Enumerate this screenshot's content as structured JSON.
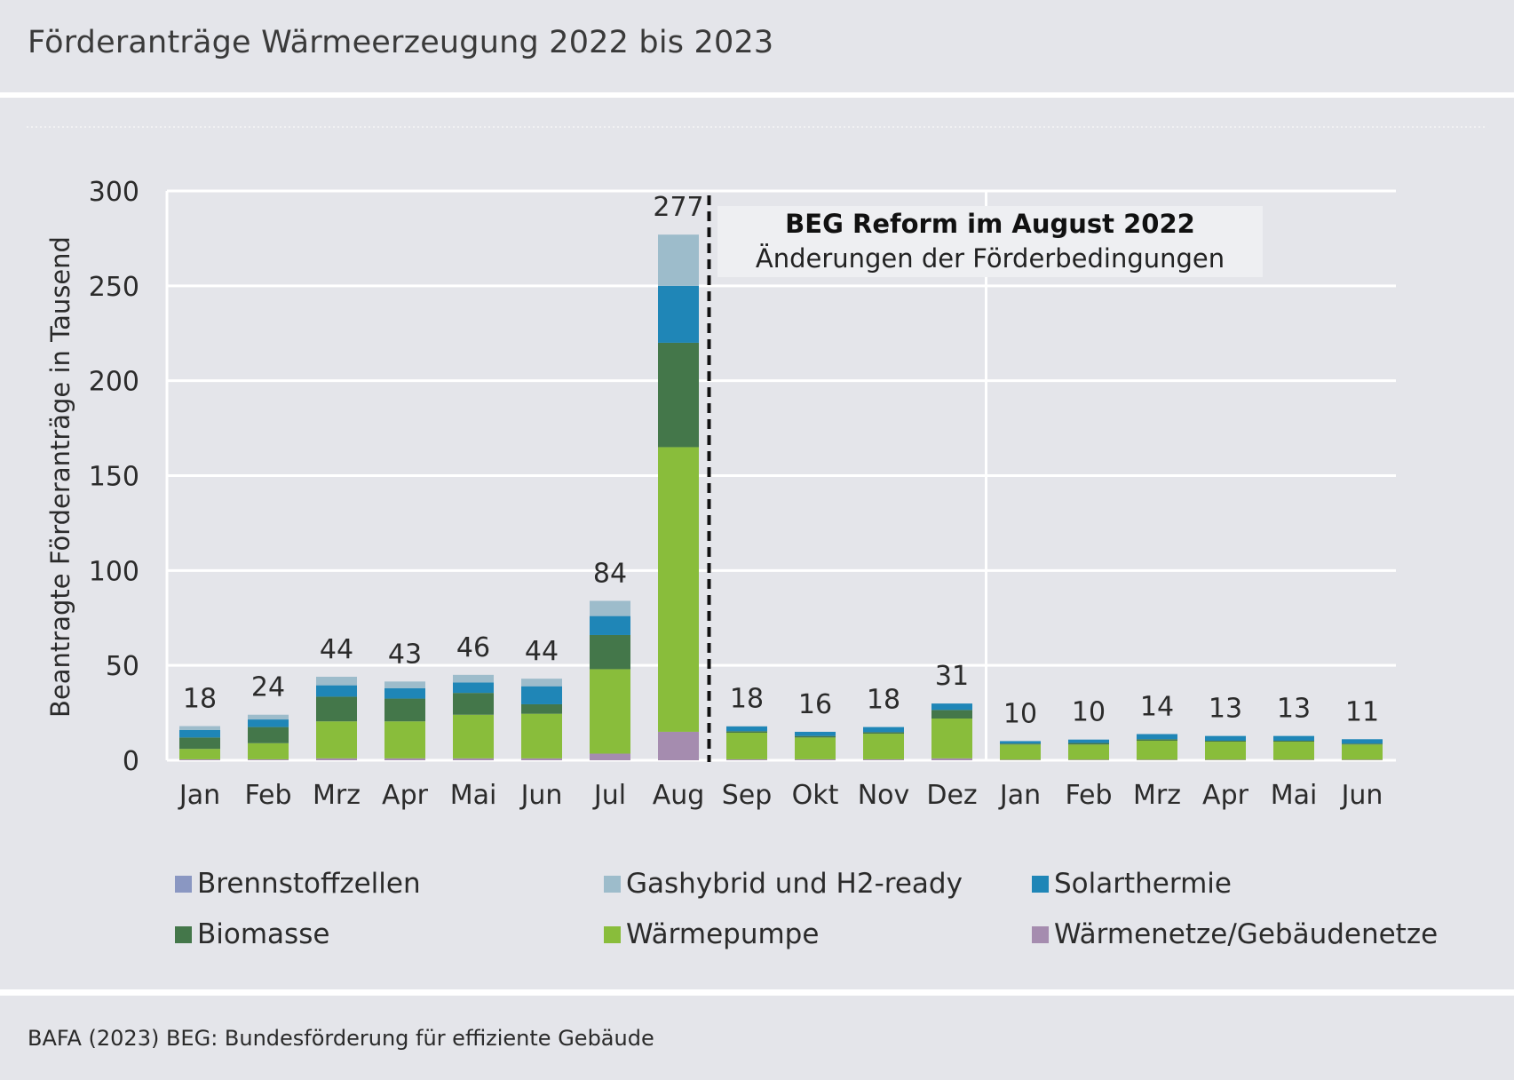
{
  "header": {
    "title": "Förderanträge Wärmeerzeugung 2022 bis 2023"
  },
  "footer": {
    "source": "BAFA (2023) BEG: Bundesförderung für effiziente Gebäude"
  },
  "colors": {
    "Brennstoffzellen": "#8a97c2",
    "Gashybrid und H2-ready": "#9dbccb",
    "Solarthermie": "#1f86b7",
    "Biomasse": "#44774a",
    "Wärmepumpe": "#89bd3b",
    "Wärmenetze/Gebäudenetze": "#a58caf"
  },
  "chart_data": {
    "type": "bar",
    "stacked": true,
    "title": "Förderanträge Wärmeerzeugung 2022 bis 2023",
    "xlabel": "",
    "ylabel": "Beantragte Förderanträge in Tausend",
    "ylim": [
      0,
      300
    ],
    "yticks": [
      0,
      50,
      100,
      150,
      200,
      250,
      300
    ],
    "categories": [
      "Jan",
      "Feb",
      "Mrz",
      "Apr",
      "Mai",
      "Jun",
      "Jul",
      "Aug",
      "Sep",
      "Okt",
      "Nov",
      "Dez",
      "Jan",
      "Feb",
      "Mrz",
      "Apr",
      "Mai",
      "Jun"
    ],
    "totals": [
      18,
      24,
      44,
      43,
      46,
      44,
      84,
      277,
      18,
      16,
      18,
      31,
      10,
      10,
      14,
      13,
      13,
      11
    ],
    "series": [
      {
        "name": "Wärmenetze/Gebäudenetze",
        "values": [
          0.5,
          0.5,
          1,
          1,
          1,
          1,
          3.5,
          15,
          0.5,
          0.5,
          0.5,
          1,
          0.3,
          0.3,
          0.3,
          0.3,
          0.3,
          0.3
        ]
      },
      {
        "name": "Brennstoffzellen",
        "values": [
          0,
          0,
          0,
          0,
          0,
          0,
          0,
          0,
          0,
          0,
          0,
          0,
          0,
          0,
          0,
          0,
          0,
          0
        ]
      },
      {
        "name": "Wärmepumpe",
        "values": [
          5.5,
          8.5,
          19.5,
          19.5,
          23,
          23.5,
          44.5,
          150,
          14,
          11.5,
          13.5,
          21,
          8,
          8,
          10,
          9.5,
          9.5,
          8
        ]
      },
      {
        "name": "Biomasse",
        "values": [
          6,
          8.5,
          13,
          12,
          11.5,
          5,
          18,
          55,
          0.8,
          0.8,
          0.8,
          4.5,
          0.5,
          0.8,
          0.8,
          0.5,
          0.5,
          0.5
        ]
      },
      {
        "name": "Solarthermie",
        "values": [
          4,
          4,
          6,
          5.5,
          5.5,
          9.5,
          10,
          30,
          2.5,
          2.2,
          2.7,
          3.4,
          1.3,
          1.8,
          2.7,
          2.5,
          2.5,
          2.3
        ]
      },
      {
        "name": "Gashybrid und H2-ready",
        "values": [
          2,
          2.5,
          4.5,
          3.5,
          4,
          4,
          8,
          27,
          0.2,
          0,
          0,
          0,
          0,
          0,
          0,
          0,
          0,
          0
        ]
      }
    ],
    "annotation": {
      "title": "BEG Reform im August 2022",
      "subtitle": "Änderungen der Förderbedingungen"
    },
    "legend": {
      "position": "bottom",
      "items": [
        "Brennstoffzellen",
        "Gashybrid und H2-ready",
        "Solarthermie",
        "Biomasse",
        "Wärmepumpe",
        "Wärmenetze/Gebäudenetze"
      ]
    }
  }
}
